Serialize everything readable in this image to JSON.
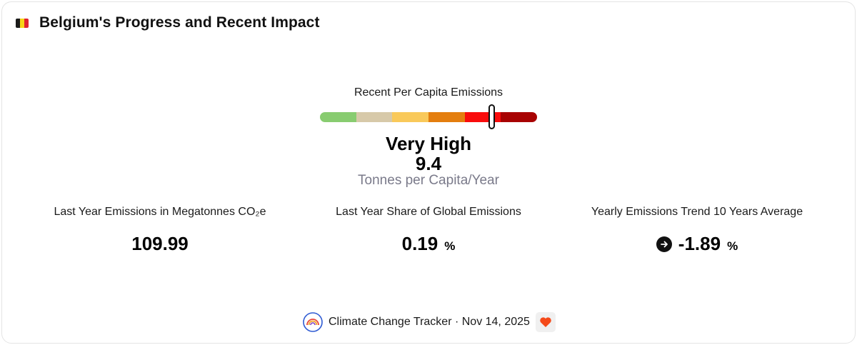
{
  "header": {
    "title": "Belgium's Progress and Recent Impact",
    "flag_icon": "belgium-flag-icon",
    "flag_colors": [
      "#1a1a1a",
      "#f7d417",
      "#e0242f"
    ]
  },
  "gauge": {
    "label": "Recent Per Capita Emissions",
    "level": "Very High",
    "value": "9.4",
    "unit": "Tonnes per Capita/Year",
    "marker_fraction": 0.792,
    "segment_colors": [
      "#88cc70",
      "#d7c9a9",
      "#f9c95a",
      "#e47e0e",
      "#f90c0c",
      "#a80202"
    ]
  },
  "stats": [
    {
      "label": "Last Year Emissions in Megatonnes CO₂e",
      "value": "109.99",
      "suffix": ""
    },
    {
      "label": "Last Year Share of Global Emissions",
      "value": "0.19",
      "suffix": "%"
    },
    {
      "label": "Yearly Emissions Trend 10 Years Average",
      "value": "-1.89",
      "suffix": "%",
      "icon": "arrow-right-circle-icon"
    }
  ],
  "footer": {
    "text": "Climate Change Tracker · Nov 14, 2025",
    "logo_icon": "rainbow-logo-icon",
    "heart_icon": "heart-icon",
    "heart_color": "#f54a1a"
  }
}
